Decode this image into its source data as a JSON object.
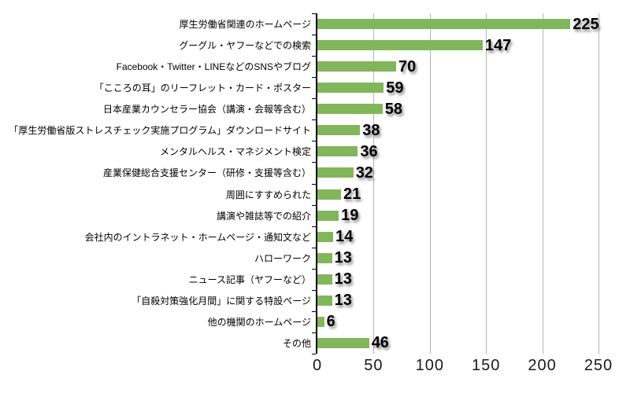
{
  "chart_data": {
    "type": "bar",
    "orientation": "horizontal",
    "title": "",
    "xlabel": "",
    "ylabel": "",
    "xlim": [
      0,
      250
    ],
    "x_ticks": [
      0,
      50,
      100,
      150,
      200,
      250
    ],
    "grid": true,
    "legend": "none",
    "bar_color": "#82B65A",
    "gridline_color": "#B3B3B3",
    "axis_color": "#000000",
    "text_color": "#000000",
    "categories": [
      "厚生労働省関連のホームページ",
      "グーグル・ヤフーなどでの検索",
      "Facebook・Twitter・LINEなどのSNSやブログ",
      "「こころの耳」のリーフレット・カード・ポスター",
      "日本産業カウンセラー協会（講演・会報等含む）",
      "「厚生労働省版ストレスチェック実施プログラム」ダウンロードサイト",
      "メンタルヘルス・マネジメント検定",
      "産業保健総合支援センター（研修・支援等含む）",
      "周囲にすすめられた",
      "講演や雑誌等での紹介",
      "会社内のイントラネット・ホームページ・通知文など",
      "ハローワーク",
      "ニュース記事（ヤフーなど）",
      "「自殺対策強化月間」に関する特設ページ",
      "他の機関のホームページ",
      "その他"
    ],
    "values": [
      225,
      147,
      70,
      59,
      58,
      38,
      36,
      32,
      21,
      19,
      14,
      13,
      13,
      13,
      6,
      46
    ]
  }
}
